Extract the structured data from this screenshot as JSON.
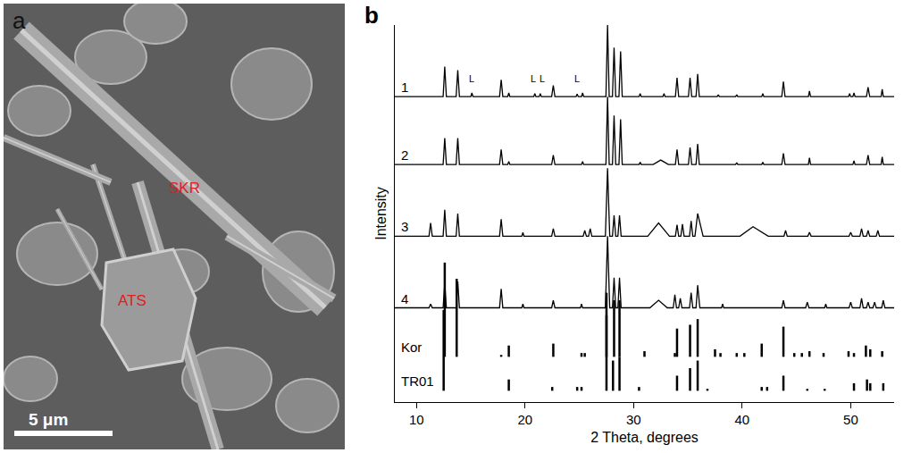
{
  "image_panel": {
    "panel_label": "a",
    "labels": [
      "SKR",
      "ATS"
    ],
    "scale_bar": "5 μm"
  },
  "chart_data": {
    "panel_label": "b",
    "type": "line",
    "x_label": "2 Theta, degrees",
    "y_label": "Intensity",
    "xlim": [
      8,
      54
    ],
    "xticks": [
      10,
      20,
      30,
      40,
      50
    ],
    "ylim": [
      0,
      100
    ],
    "yticks": [],
    "tick_labels": "x",
    "grid": false,
    "color": "#000000",
    "annotations": [
      {
        "text": "L",
        "x": 15.1,
        "y": 84
      },
      {
        "text": "L",
        "x": 20.75,
        "y": 84
      },
      {
        "text": "L",
        "x": 21.55,
        "y": 84
      },
      {
        "text": "L",
        "x": 24.8,
        "y": 84
      }
    ],
    "series": [
      {
        "name": "1",
        "x": [
          8,
          12.45,
          12.6,
          12.75,
          13.65,
          13.8,
          13.95,
          15.0,
          15.1,
          15.2,
          17.65,
          17.8,
          17.95,
          18.4,
          18.5,
          18.6,
          20.8,
          20.9,
          21.0,
          21.3,
          21.4,
          21.5,
          22.45,
          22.6,
          22.75,
          24.7,
          24.8,
          24.9,
          25.2,
          25.3,
          25.4,
          27.45,
          27.6,
          27.75,
          28.05,
          28.2,
          28.35,
          28.65,
          28.8,
          28.95,
          30.5,
          30.6,
          30.7,
          32.7,
          32.8,
          32.9,
          33.85,
          34.0,
          34.15,
          35.05,
          35.2,
          35.35,
          35.75,
          35.9,
          36.05,
          37.7,
          37.8,
          37.9,
          39.4,
          39.5,
          39.6,
          41.8,
          41.9,
          42.0,
          43.65,
          43.8,
          43.95,
          46.1,
          46.2,
          46.3,
          49.8,
          49.9,
          50.0,
          50.2,
          50.3,
          50.4,
          51.45,
          51.6,
          51.75,
          52.8,
          52.9,
          53.0,
          54
        ],
        "values": [
          81,
          81,
          89,
          81,
          81,
          88,
          81,
          81,
          82,
          81,
          81,
          85.5,
          81,
          81,
          82,
          81,
          81,
          81.8,
          81,
          81,
          81.8,
          81,
          81,
          84,
          81,
          81,
          81.7,
          81,
          81,
          82,
          81,
          81,
          100,
          81,
          81,
          94,
          81,
          81,
          93,
          81,
          81,
          81.8,
          81,
          81,
          81.8,
          81,
          81,
          86,
          81,
          81,
          86,
          81,
          81,
          87,
          81,
          81,
          81.5,
          81,
          81,
          81.5,
          81,
          81,
          81.8,
          81,
          81,
          85,
          81,
          81,
          82.5,
          81,
          81,
          81.8,
          81,
          81,
          82,
          81,
          81,
          83.5,
          81,
          81,
          83,
          81,
          81
        ]
      },
      {
        "name": "2",
        "x": [
          8,
          12.45,
          12.6,
          12.75,
          13.65,
          13.8,
          13.95,
          17.65,
          17.8,
          17.95,
          18.4,
          18.5,
          18.6,
          22.45,
          22.6,
          22.75,
          25.2,
          25.3,
          25.4,
          27.45,
          27.6,
          27.75,
          28.05,
          28.2,
          28.35,
          28.65,
          28.8,
          28.95,
          30.5,
          30.6,
          30.7,
          31.8,
          32.5,
          33.2,
          33.85,
          34.0,
          34.15,
          35.05,
          35.2,
          35.35,
          35.75,
          35.9,
          36.05,
          39.4,
          39.5,
          39.6,
          41.8,
          41.9,
          42.0,
          43.65,
          43.8,
          43.95,
          46.1,
          46.2,
          46.3,
          50.2,
          50.3,
          50.4,
          51.45,
          51.6,
          51.75,
          52.8,
          52.9,
          53.0,
          54
        ],
        "values": [
          63,
          63,
          70,
          63,
          63,
          70,
          63,
          63,
          67,
          63,
          63,
          63.8,
          63,
          63,
          65.5,
          63,
          63,
          63.8,
          63,
          63,
          81,
          63,
          63,
          76,
          63,
          63,
          75,
          63,
          63,
          63.6,
          63,
          63,
          64.2,
          63,
          63,
          67,
          63,
          63,
          67.5,
          63,
          63,
          68.5,
          63,
          63,
          63.5,
          63,
          63,
          63.6,
          63,
          63,
          66,
          63,
          63,
          64.8,
          63,
          63,
          64,
          63,
          63,
          65.5,
          63,
          63,
          65,
          63,
          63
        ]
      },
      {
        "name": "3",
        "x": [
          8,
          11.15,
          11.3,
          11.45,
          12.45,
          12.6,
          12.75,
          13.65,
          13.8,
          13.95,
          17.65,
          17.8,
          17.95,
          19.7,
          19.8,
          19.9,
          22.45,
          22.6,
          22.75,
          25.35,
          25.5,
          25.65,
          25.85,
          26.0,
          26.15,
          27.4,
          27.6,
          27.8,
          28.05,
          28.2,
          28.35,
          28.55,
          28.7,
          28.85,
          31.3,
          32.3,
          33.3,
          33.85,
          34.0,
          34.15,
          34.35,
          34.5,
          34.65,
          35.15,
          35.3,
          35.45,
          35.65,
          35.9,
          36.4,
          39.8,
          41.0,
          42.4,
          43.85,
          44.0,
          44.15,
          46.05,
          46.2,
          46.35,
          49.85,
          50.0,
          50.15,
          50.85,
          51.0,
          51.15,
          51.45,
          51.6,
          51.75,
          52.35,
          52.5,
          52.65,
          54
        ],
        "values": [
          44,
          44,
          47.5,
          44,
          44,
          51,
          44,
          44,
          50,
          44,
          44,
          48.5,
          44,
          44,
          45,
          44,
          44,
          46,
          44,
          44,
          45.5,
          44,
          44,
          46,
          44,
          44,
          62,
          44,
          44,
          49.5,
          44,
          44,
          49.5,
          44,
          44,
          47.5,
          44,
          44,
          47,
          44,
          44,
          47.2,
          44,
          44,
          48,
          44,
          44,
          50,
          44,
          44,
          46.5,
          44,
          44,
          45.5,
          44,
          44,
          45,
          44,
          44,
          45,
          44,
          44,
          46,
          44,
          44,
          45.5,
          44,
          44,
          45.5,
          44,
          44
        ]
      },
      {
        "name": "4",
        "x": [
          8,
          11.15,
          11.3,
          11.45,
          12.45,
          12.6,
          12.75,
          13.65,
          13.8,
          13.95,
          17.65,
          17.8,
          17.95,
          19.7,
          19.8,
          19.9,
          22.45,
          22.6,
          22.75,
          25.1,
          25.2,
          25.3,
          27.4,
          27.6,
          27.8,
          28.05,
          28.2,
          28.35,
          28.55,
          28.7,
          28.85,
          31.5,
          32.3,
          33.1,
          33.65,
          33.8,
          33.95,
          34.15,
          34.3,
          34.45,
          35.15,
          35.3,
          35.45,
          35.75,
          35.9,
          36.1,
          38.1,
          38.2,
          38.3,
          43.65,
          43.8,
          43.95,
          45.85,
          46.0,
          46.15,
          47.6,
          47.7,
          47.8,
          49.85,
          50.0,
          50.15,
          50.85,
          51.0,
          51.15,
          51.45,
          51.6,
          51.75,
          52.05,
          52.2,
          52.35,
          52.85,
          53.0,
          53.15,
          54
        ],
        "values": [
          25,
          25,
          26,
          25,
          25,
          31.5,
          25,
          25,
          32,
          25,
          25,
          30,
          25,
          25,
          26,
          25,
          25,
          27,
          25,
          25,
          26,
          25,
          25,
          44,
          25,
          25,
          33,
          25,
          25,
          33,
          25,
          25,
          27,
          25,
          25,
          28.5,
          25,
          25,
          27.5,
          25,
          25,
          29,
          25,
          25,
          31,
          25,
          25,
          26,
          25,
          25,
          27,
          25,
          25,
          26.5,
          25,
          25,
          26,
          25,
          25,
          26.5,
          25,
          25,
          27.5,
          25,
          25,
          26.5,
          25,
          25,
          26.5,
          25,
          25,
          27,
          25,
          25
        ]
      },
      {
        "name": "Kor",
        "type": "stick",
        "baseline": 12,
        "x": [
          12.6,
          13.7,
          17.8,
          18.5,
          22.6,
          25.2,
          25.5,
          27.5,
          28.2,
          28.7,
          31.0,
          33.8,
          34.0,
          35.2,
          35.9,
          37.5,
          38.0,
          39.5,
          40.2,
          41.8,
          43.8,
          44.8,
          45.5,
          46.2,
          47.5,
          49.8,
          50.3,
          51.4,
          51.8,
          52.9
        ],
        "values": [
          37,
          32.7,
          12.5,
          15,
          15.5,
          13,
          13,
          29,
          27,
          27,
          13.5,
          13,
          19.5,
          20.5,
          22,
          14,
          13,
          13,
          13,
          15.5,
          20,
          13,
          13,
          13.5,
          13,
          13.5,
          13,
          15,
          14,
          13.5
        ]
      },
      {
        "name": "TR01",
        "type": "stick",
        "baseline": 3,
        "x": [
          12.5,
          18.5,
          22.5,
          24.8,
          25.2,
          27.5,
          28.1,
          28.7,
          30.5,
          34.0,
          35.2,
          35.9,
          36.8,
          41.8,
          42.3,
          43.8,
          46.0,
          47.6,
          50.3,
          51.5,
          51.8,
          53.0
        ],
        "values": [
          24.4,
          6,
          4,
          4,
          4,
          23,
          11,
          12,
          4,
          7,
          9,
          11,
          3.5,
          4,
          4,
          7,
          3.5,
          3.5,
          5,
          6,
          5,
          5
        ]
      }
    ]
  }
}
